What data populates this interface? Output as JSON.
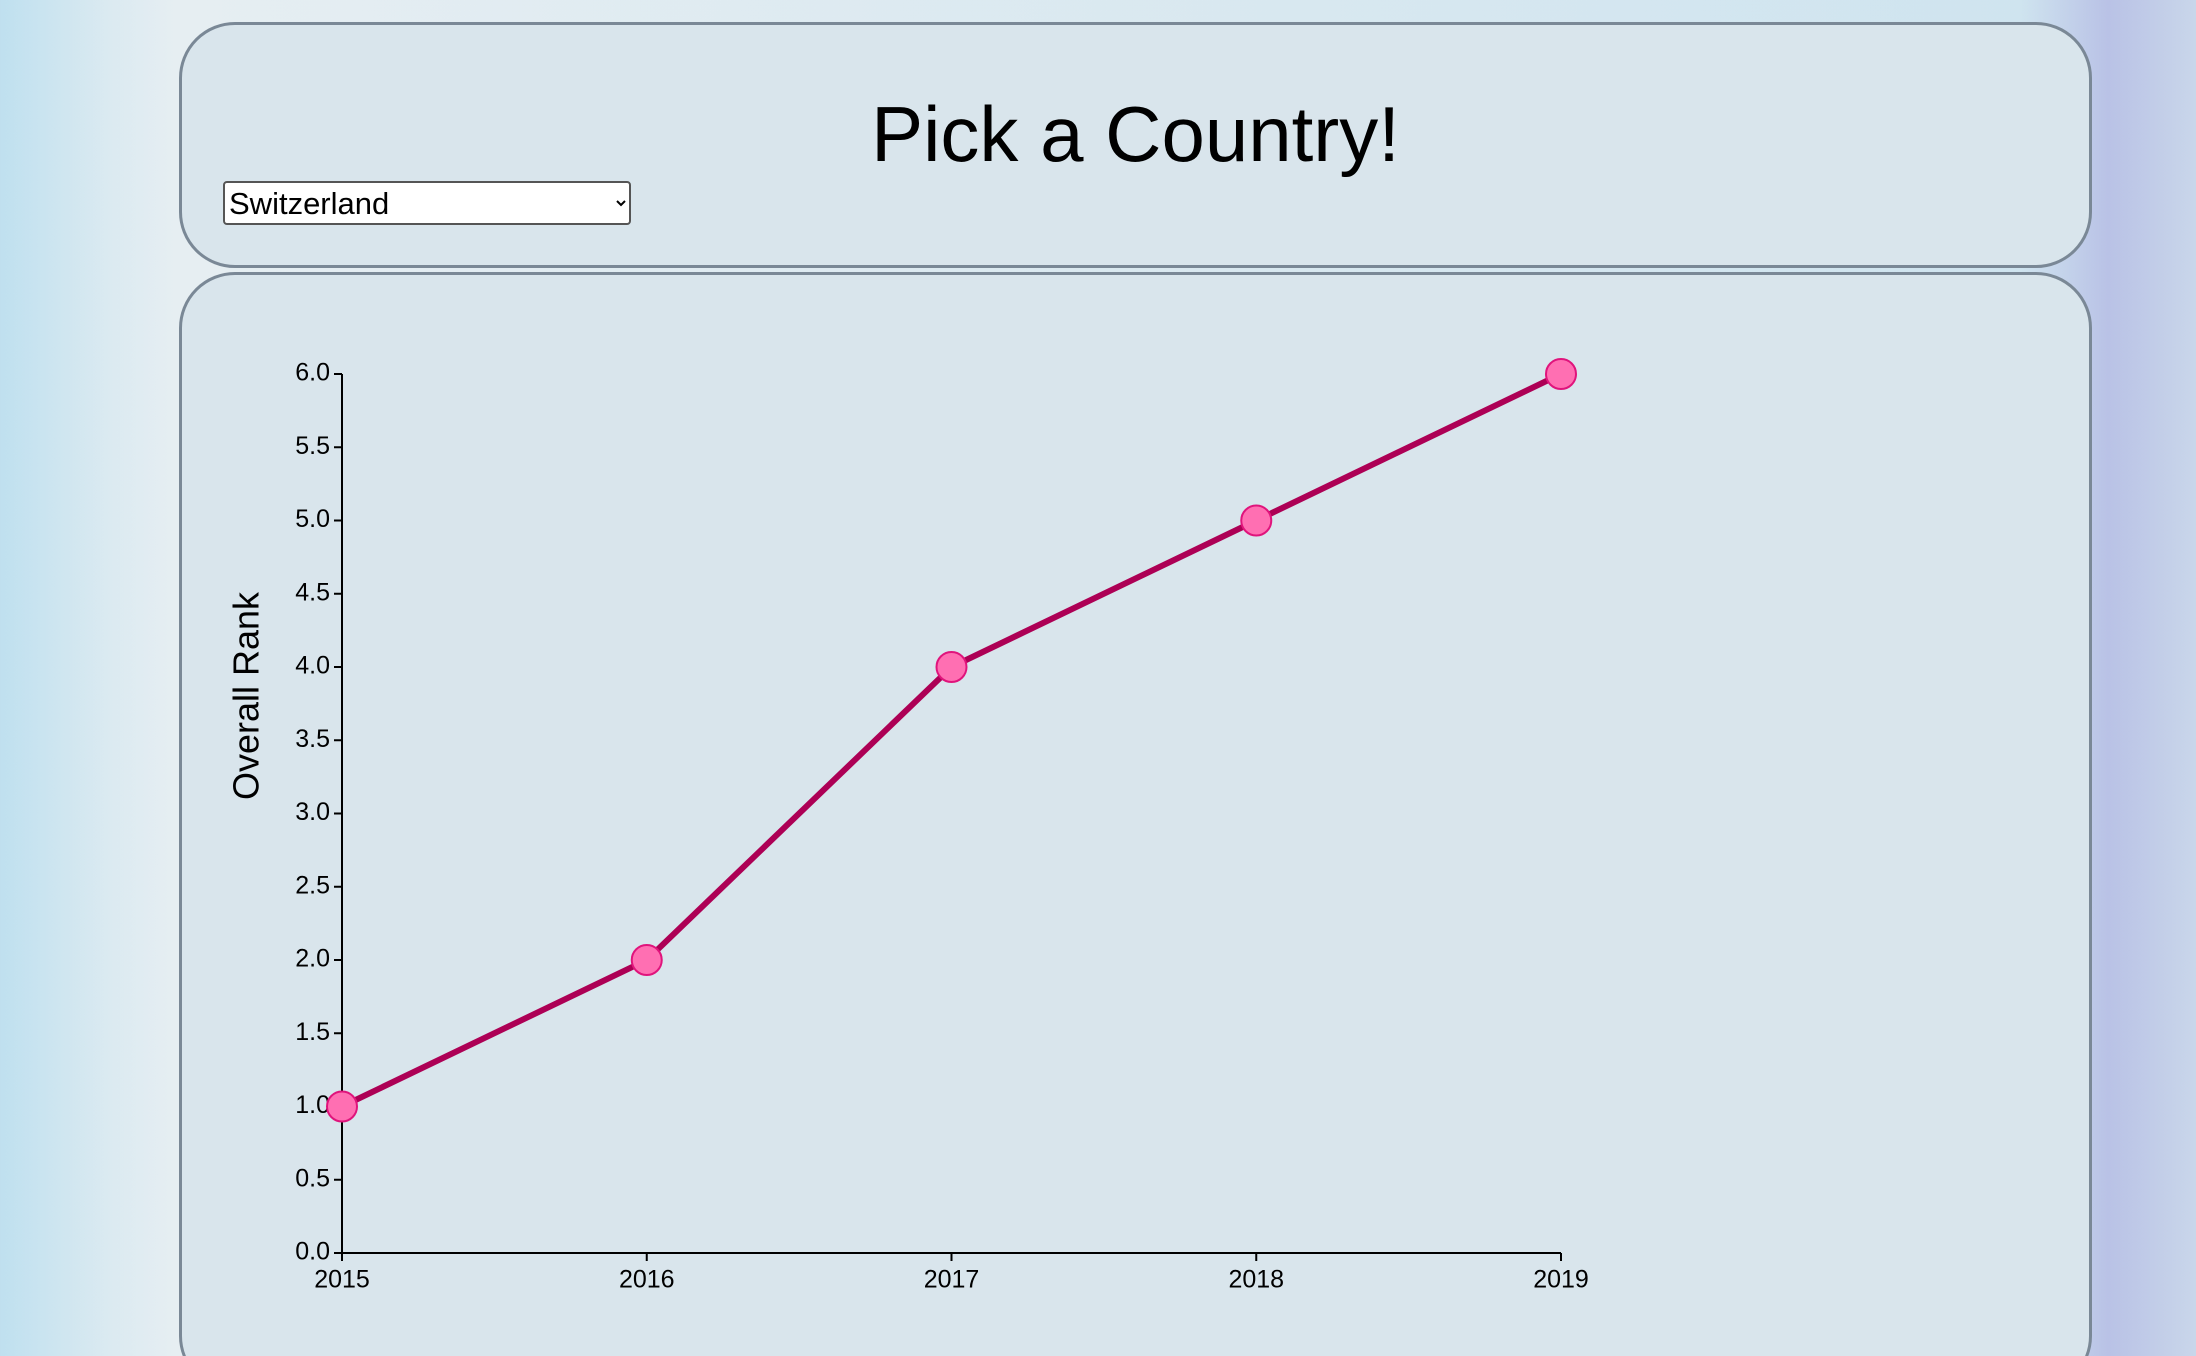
{
  "header": {
    "title": "Pick a Country!"
  },
  "dropdown": {
    "selected": "Switzerland"
  },
  "chart_data": {
    "type": "line",
    "x": [
      2015,
      2016,
      2017,
      2018,
      2019
    ],
    "series": [
      {
        "color": "#ad0055",
        "marker_color": "#ff6fb2",
        "values": [
          1,
          2,
          4,
          5,
          6
        ]
      }
    ],
    "y_label": "Overall Rank",
    "xlim": [
      2015,
      2019
    ],
    "xticks": [
      2015,
      2016,
      2017,
      2018,
      2019
    ],
    "ylim": [
      0,
      6
    ],
    "yticks": [
      {
        "value": 0,
        "label": "0.0"
      },
      0.5,
      {
        "value": 1,
        "label": "1.0"
      },
      1.5,
      {
        "value": 2,
        "label": "2.0"
      },
      2.5,
      {
        "value": 3,
        "label": "3.0"
      },
      3.5,
      {
        "value": 4,
        "label": "4.0"
      },
      4.5,
      {
        "value": 5,
        "label": "5.0"
      },
      5.5,
      {
        "value": 6,
        "label": "6.0"
      }
    ]
  }
}
